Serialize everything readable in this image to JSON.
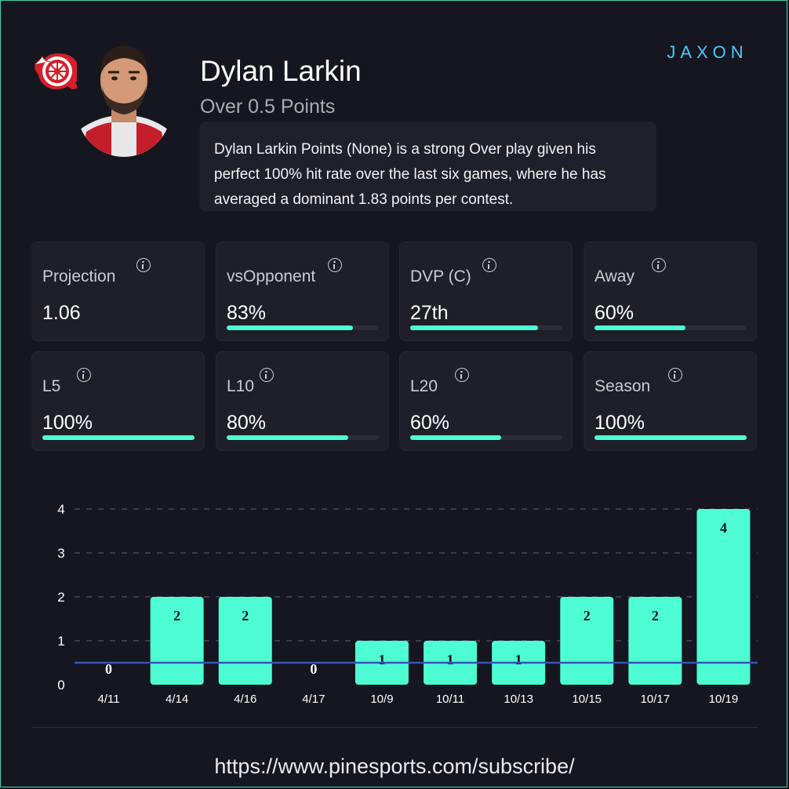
{
  "player": {
    "name": "Dylan Larkin",
    "prop": "Over 0.5 Points",
    "summary": "Dylan Larkin Points (None) is a strong Over play given his perfect 100% hit rate over the last six games, where he has averaged a dominant 1.83 points per contest."
  },
  "brand": {
    "logo_text": "JAXON",
    "accent": "#4cc8ff"
  },
  "colors": {
    "accent": "#4dfcd3",
    "line": "#3a52b8",
    "background": "#15161f",
    "card": "#1e1f28"
  },
  "stats": [
    {
      "label": "Projection",
      "value": "1.06",
      "bar": null
    },
    {
      "label": "vsOpponent",
      "value": "83%",
      "bar": 0.83
    },
    {
      "label": "DVP (C)",
      "value": "27th",
      "bar": 0.84
    },
    {
      "label": "Away",
      "value": "60%",
      "bar": 0.6
    },
    {
      "label": "L5",
      "value": "100%",
      "bar": 1.0
    },
    {
      "label": "L10",
      "value": "80%",
      "bar": 0.8
    },
    {
      "label": "L20",
      "value": "60%",
      "bar": 0.6
    },
    {
      "label": "Season",
      "value": "100%",
      "bar": 1.0
    }
  ],
  "chart_data": {
    "type": "bar",
    "categories": [
      "4/11",
      "4/14",
      "4/16",
      "4/17",
      "10/9",
      "10/11",
      "10/13",
      "10/15",
      "10/17",
      "10/19"
    ],
    "values": [
      0,
      2,
      2,
      0,
      1,
      1,
      1,
      2,
      2,
      4
    ],
    "threshold": 0.5,
    "ylim": [
      0,
      4
    ],
    "yticks": [
      0,
      1,
      2,
      3,
      4
    ],
    "grid": true,
    "title": "",
    "xlabel": "",
    "ylabel": ""
  },
  "footer": {
    "url": "https://www.pinesports.com/subscribe/"
  }
}
